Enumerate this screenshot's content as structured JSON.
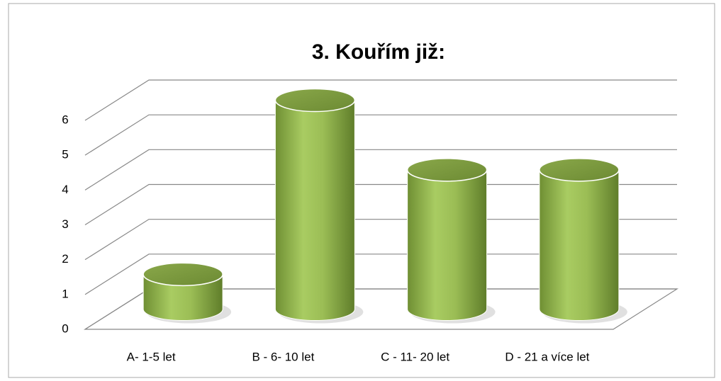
{
  "chart_data": {
    "type": "bar3d",
    "title": "3. Kouřím již:",
    "categories": [
      "A- 1-5 let",
      "B - 6- 10 let",
      "C - 11- 20 let",
      "D - 21 a více let"
    ],
    "values": [
      1,
      6,
      4,
      4
    ],
    "color": "#9bbb59",
    "ylim": [
      0,
      6
    ],
    "yticks": [
      0,
      1,
      2,
      3,
      4,
      5,
      6
    ],
    "grid": true
  }
}
